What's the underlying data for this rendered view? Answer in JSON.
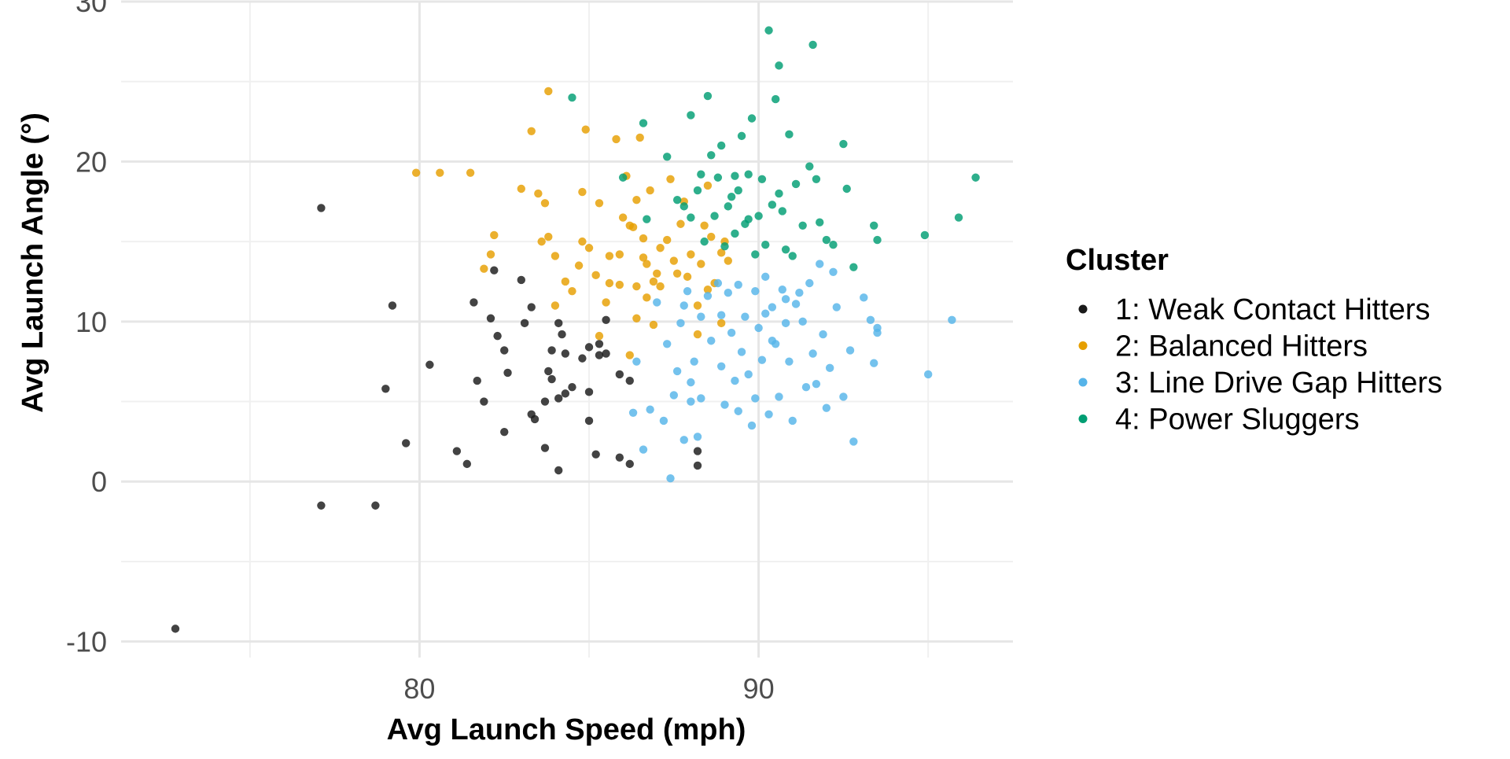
{
  "chart_data": {
    "type": "scatter",
    "title": "",
    "xlabel": "Avg Launch Speed (mph)",
    "ylabel": "Avg Launch Angle (°)",
    "xlim": [
      71.2,
      97.5
    ],
    "ylim": [
      -11,
      30
    ],
    "x_ticks": [
      80,
      90
    ],
    "y_ticks": [
      -10,
      0,
      10,
      20,
      30
    ],
    "x_tick_labels": [
      "80",
      "90"
    ],
    "y_tick_labels": [
      "-10",
      "0",
      "10",
      "20",
      "30"
    ],
    "grid": true,
    "legend": {
      "title": "Cluster",
      "position": "right"
    },
    "series": [
      {
        "name": "1: Weak Contact Hitters",
        "color": "#1a1a1a",
        "points": [
          [
            72.8,
            -9.2
          ],
          [
            77.1,
            -1.5
          ],
          [
            78.7,
            -1.5
          ],
          [
            77.1,
            17.1
          ],
          [
            79.2,
            11.0
          ],
          [
            79.0,
            5.8
          ],
          [
            79.6,
            2.4
          ],
          [
            80.3,
            7.3
          ],
          [
            81.1,
            1.9
          ],
          [
            81.4,
            1.1
          ],
          [
            81.6,
            11.2
          ],
          [
            81.7,
            6.3
          ],
          [
            81.9,
            5.0
          ],
          [
            82.1,
            10.2
          ],
          [
            82.2,
            13.2
          ],
          [
            82.3,
            9.1
          ],
          [
            82.5,
            8.2
          ],
          [
            82.5,
            3.1
          ],
          [
            82.6,
            6.8
          ],
          [
            83.0,
            12.6
          ],
          [
            83.1,
            9.9
          ],
          [
            83.3,
            10.9
          ],
          [
            83.3,
            4.2
          ],
          [
            83.4,
            3.9
          ],
          [
            83.7,
            2.1
          ],
          [
            83.8,
            6.9
          ],
          [
            83.7,
            5.0
          ],
          [
            83.9,
            8.2
          ],
          [
            83.9,
            6.4
          ],
          [
            84.1,
            5.2
          ],
          [
            84.1,
            0.7
          ],
          [
            84.2,
            9.2
          ],
          [
            84.1,
            9.9
          ],
          [
            84.3,
            8.0
          ],
          [
            84.3,
            5.5
          ],
          [
            84.5,
            5.9
          ],
          [
            84.8,
            7.7
          ],
          [
            85.0,
            8.4
          ],
          [
            85.0,
            5.6
          ],
          [
            85.0,
            3.8
          ],
          [
            85.2,
            1.7
          ],
          [
            85.3,
            8.6
          ],
          [
            85.3,
            7.9
          ],
          [
            85.5,
            8.0
          ],
          [
            85.5,
            10.1
          ],
          [
            85.9,
            6.7
          ],
          [
            85.9,
            1.5
          ],
          [
            86.2,
            6.3
          ],
          [
            86.2,
            1.1
          ],
          [
            88.2,
            1.0
          ],
          [
            88.2,
            1.9
          ]
        ]
      },
      {
        "name": "2: Balanced Hitters",
        "color": "#e69f00",
        "points": [
          [
            79.9,
            19.3
          ],
          [
            80.6,
            19.3
          ],
          [
            81.5,
            19.3
          ],
          [
            81.9,
            13.3
          ],
          [
            82.1,
            14.2
          ],
          [
            82.2,
            15.4
          ],
          [
            83.0,
            18.3
          ],
          [
            83.3,
            21.9
          ],
          [
            83.6,
            15.0
          ],
          [
            83.8,
            24.4
          ],
          [
            83.7,
            17.4
          ],
          [
            83.5,
            18.0
          ],
          [
            83.8,
            15.3
          ],
          [
            84.0,
            14.1
          ],
          [
            84.0,
            11.0
          ],
          [
            84.3,
            12.5
          ],
          [
            84.5,
            11.9
          ],
          [
            84.7,
            13.5
          ],
          [
            84.8,
            15.0
          ],
          [
            84.8,
            18.1
          ],
          [
            84.9,
            22.0
          ],
          [
            85.0,
            14.6
          ],
          [
            85.2,
            12.9
          ],
          [
            85.3,
            17.4
          ],
          [
            85.6,
            14.1
          ],
          [
            85.5,
            11.2
          ],
          [
            85.6,
            12.4
          ],
          [
            85.8,
            21.4
          ],
          [
            85.9,
            14.2
          ],
          [
            86.0,
            16.5
          ],
          [
            85.9,
            12.3
          ],
          [
            86.1,
            19.1
          ],
          [
            86.3,
            15.9
          ],
          [
            86.4,
            12.2
          ],
          [
            86.4,
            17.6
          ],
          [
            86.5,
            21.5
          ],
          [
            86.6,
            15.2
          ],
          [
            86.6,
            14.0
          ],
          [
            86.7,
            13.6
          ],
          [
            86.7,
            11.5
          ],
          [
            86.8,
            18.2
          ],
          [
            86.9,
            12.5
          ],
          [
            87.0,
            13.0
          ],
          [
            87.1,
            14.6
          ],
          [
            87.1,
            12.2
          ],
          [
            87.3,
            15.1
          ],
          [
            87.5,
            13.8
          ],
          [
            87.6,
            13.0
          ],
          [
            87.7,
            16.1
          ],
          [
            87.9,
            12.8
          ],
          [
            88.0,
            14.2
          ],
          [
            88.2,
            11.0
          ],
          [
            88.3,
            13.6
          ],
          [
            88.5,
            18.5
          ],
          [
            88.4,
            16.0
          ],
          [
            88.6,
            15.3
          ],
          [
            88.7,
            12.4
          ],
          [
            88.9,
            9.9
          ],
          [
            89.1,
            13.8
          ],
          [
            86.4,
            10.2
          ],
          [
            86.9,
            9.8
          ],
          [
            88.2,
            9.2
          ],
          [
            85.3,
            9.1
          ],
          [
            86.2,
            7.9
          ],
          [
            88.5,
            12.0
          ],
          [
            87.4,
            18.9
          ],
          [
            87.8,
            17.5
          ],
          [
            88.9,
            14.3
          ],
          [
            89.0,
            15.0
          ],
          [
            86.2,
            16.0
          ]
        ]
      },
      {
        "name": "3: Line Drive Gap Hitters",
        "color": "#56b4e9",
        "points": [
          [
            86.3,
            4.3
          ],
          [
            86.6,
            2.0
          ],
          [
            86.8,
            4.5
          ],
          [
            87.3,
            8.6
          ],
          [
            87.4,
            0.2
          ],
          [
            87.5,
            5.4
          ],
          [
            87.6,
            6.9
          ],
          [
            87.7,
            9.9
          ],
          [
            87.8,
            2.6
          ],
          [
            87.9,
            11.9
          ],
          [
            88.0,
            5.0
          ],
          [
            88.1,
            7.5
          ],
          [
            88.2,
            2.8
          ],
          [
            88.3,
            10.3
          ],
          [
            88.3,
            5.2
          ],
          [
            88.5,
            11.6
          ],
          [
            88.6,
            8.8
          ],
          [
            88.8,
            12.4
          ],
          [
            88.9,
            7.2
          ],
          [
            88.9,
            10.4
          ],
          [
            89.0,
            4.8
          ],
          [
            89.1,
            11.8
          ],
          [
            89.2,
            9.3
          ],
          [
            89.3,
            6.3
          ],
          [
            89.4,
            12.3
          ],
          [
            89.5,
            8.1
          ],
          [
            89.6,
            10.3
          ],
          [
            89.7,
            6.7
          ],
          [
            89.8,
            3.5
          ],
          [
            89.9,
            11.9
          ],
          [
            90.0,
            9.6
          ],
          [
            90.1,
            7.6
          ],
          [
            90.2,
            12.8
          ],
          [
            90.3,
            4.2
          ],
          [
            90.4,
            10.9
          ],
          [
            90.5,
            8.6
          ],
          [
            90.6,
            5.3
          ],
          [
            90.7,
            12.0
          ],
          [
            90.8,
            9.9
          ],
          [
            90.9,
            7.5
          ],
          [
            91.0,
            3.8
          ],
          [
            91.1,
            11.1
          ],
          [
            91.3,
            10.0
          ],
          [
            91.4,
            5.9
          ],
          [
            91.5,
            12.4
          ],
          [
            91.6,
            8.0
          ],
          [
            91.8,
            13.6
          ],
          [
            91.9,
            9.2
          ],
          [
            92.0,
            4.6
          ],
          [
            92.1,
            7.1
          ],
          [
            92.3,
            10.9
          ],
          [
            92.5,
            5.3
          ],
          [
            92.7,
            8.2
          ],
          [
            92.8,
            2.5
          ],
          [
            93.1,
            11.5
          ],
          [
            93.3,
            10.1
          ],
          [
            93.4,
            7.4
          ],
          [
            93.5,
            9.3
          ],
          [
            93.5,
            9.6
          ],
          [
            95.7,
            10.1
          ],
          [
            95.0,
            6.7
          ],
          [
            87.0,
            11.2
          ],
          [
            88.0,
            6.2
          ],
          [
            89.4,
            4.4
          ],
          [
            90.2,
            10.5
          ],
          [
            90.8,
            11.4
          ],
          [
            91.2,
            11.8
          ],
          [
            87.2,
            3.8
          ],
          [
            86.4,
            7.5
          ],
          [
            87.8,
            11.0
          ],
          [
            89.9,
            5.2
          ],
          [
            91.7,
            6.1
          ],
          [
            90.4,
            8.8
          ],
          [
            92.2,
            13.1
          ]
        ]
      },
      {
        "name": "4: Power Sluggers",
        "color": "#009e73",
        "points": [
          [
            84.5,
            24.0
          ],
          [
            86.0,
            19.0
          ],
          [
            86.6,
            22.4
          ],
          [
            86.7,
            16.4
          ],
          [
            87.3,
            20.3
          ],
          [
            87.6,
            17.6
          ],
          [
            87.8,
            17.2
          ],
          [
            88.0,
            16.5
          ],
          [
            88.0,
            22.9
          ],
          [
            88.2,
            18.2
          ],
          [
            88.3,
            19.2
          ],
          [
            88.5,
            24.1
          ],
          [
            88.6,
            20.4
          ],
          [
            88.7,
            16.6
          ],
          [
            88.8,
            19.0
          ],
          [
            88.9,
            21.0
          ],
          [
            89.0,
            14.7
          ],
          [
            89.1,
            17.2
          ],
          [
            89.3,
            19.1
          ],
          [
            89.3,
            15.5
          ],
          [
            89.4,
            18.2
          ],
          [
            89.5,
            21.6
          ],
          [
            89.6,
            16.1
          ],
          [
            89.7,
            19.2
          ],
          [
            89.8,
            22.7
          ],
          [
            89.9,
            14.2
          ],
          [
            90.0,
            16.6
          ],
          [
            90.1,
            18.9
          ],
          [
            90.2,
            14.8
          ],
          [
            90.3,
            28.2
          ],
          [
            90.4,
            17.3
          ],
          [
            90.5,
            23.9
          ],
          [
            90.6,
            26.0
          ],
          [
            90.7,
            16.9
          ],
          [
            90.8,
            14.5
          ],
          [
            90.9,
            21.7
          ],
          [
            91.0,
            14.1
          ],
          [
            91.1,
            18.6
          ],
          [
            91.3,
            16.0
          ],
          [
            91.5,
            19.7
          ],
          [
            91.6,
            27.3
          ],
          [
            91.7,
            18.9
          ],
          [
            91.8,
            16.2
          ],
          [
            92.0,
            15.1
          ],
          [
            92.2,
            14.8
          ],
          [
            92.5,
            21.1
          ],
          [
            92.6,
            18.3
          ],
          [
            92.8,
            13.4
          ],
          [
            93.4,
            16.0
          ],
          [
            93.5,
            15.1
          ],
          [
            94.9,
            15.4
          ],
          [
            95.9,
            16.5
          ],
          [
            96.4,
            19.0
          ],
          [
            89.2,
            17.8
          ],
          [
            88.4,
            15.0
          ],
          [
            90.6,
            18.0
          ],
          [
            89.7,
            16.4
          ]
        ]
      }
    ]
  }
}
